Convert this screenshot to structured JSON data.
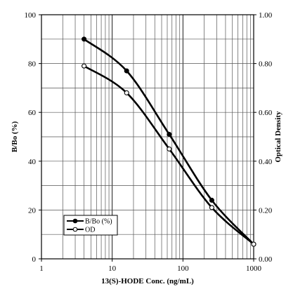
{
  "chart_data": {
    "type": "line",
    "x_scale": "log",
    "xlim": [
      1,
      1000
    ],
    "ylim_left": [
      0,
      100
    ],
    "ylim_right": [
      0,
      1.0
    ],
    "xlabel": "13(S)-HODE Conc. (ng/mL)",
    "ylabel_left": "B/Bo (%)",
    "ylabel_right": "Optical Density",
    "x_tick_labels": [
      "1",
      "10",
      "100",
      "1000"
    ],
    "y_left_tick_labels": [
      "0",
      "20",
      "40",
      "60",
      "80",
      "100"
    ],
    "y_right_tick_labels": [
      "0.00",
      "0.20",
      "0.40",
      "0.60",
      "0.80",
      "1.00"
    ],
    "grid": true,
    "legend_position": "bottom-left",
    "series": [
      {
        "name": "B/Bo (%)",
        "axis": "left",
        "marker": "filled-circle",
        "x": [
          4,
          16,
          64,
          256,
          1000
        ],
        "y": [
          90,
          77,
          51,
          24,
          6
        ]
      },
      {
        "name": "OD",
        "axis": "right",
        "marker": "open-circle",
        "x": [
          4,
          16,
          64,
          256,
          1000
        ],
        "y": [
          0.79,
          0.68,
          0.45,
          0.21,
          0.06
        ]
      }
    ]
  }
}
